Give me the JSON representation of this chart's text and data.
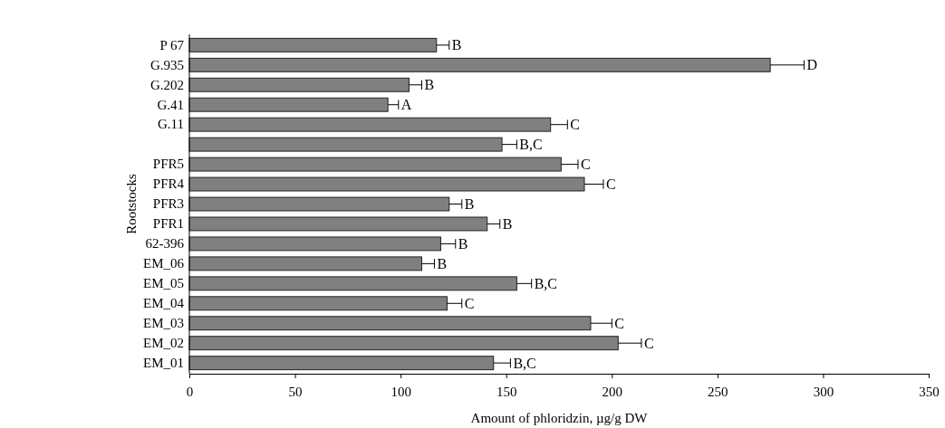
{
  "chart_data": {
    "type": "bar",
    "orientation": "horizontal",
    "xlabel": "Amount of phloridzin, µg/g DW",
    "ylabel": "Rootstocks",
    "categories": [
      "P 67",
      "G.935",
      "G.202",
      "G.41",
      "G.11",
      null,
      "PFR5",
      "PFR4",
      "PFR3",
      "PFR1",
      "62-396",
      "EM_06",
      "EM_05",
      "EM_04",
      "EM_03",
      "EM_02",
      "EM_01"
    ],
    "values": [
      117,
      275,
      104,
      94,
      171,
      148,
      176,
      187,
      123,
      141,
      119,
      110,
      155,
      122,
      190,
      203,
      144
    ],
    "errors": [
      [
        117,
        123
      ],
      [
        275,
        291
      ],
      [
        104,
        110
      ],
      [
        94,
        99
      ],
      [
        171,
        179
      ],
      [
        148,
        155
      ],
      [
        176,
        184
      ],
      [
        187,
        196
      ],
      [
        123,
        129
      ],
      [
        141,
        147
      ],
      [
        119,
        126
      ],
      [
        110,
        116
      ],
      [
        155,
        162
      ],
      [
        122,
        129
      ],
      [
        190,
        200
      ],
      [
        203,
        214
      ],
      [
        144,
        152
      ]
    ],
    "value_labels": [
      "B",
      "D",
      "B",
      "A",
      "C",
      "B,C",
      "C",
      "C",
      "B",
      "B",
      "B",
      "B",
      "B,C",
      "C",
      "C",
      "C",
      "B,C"
    ],
    "color": "#808080",
    "xlim": [
      0,
      350
    ],
    "xticks": [
      0,
      50,
      100,
      150,
      200,
      250,
      300,
      350
    ],
    "grid": false
  }
}
